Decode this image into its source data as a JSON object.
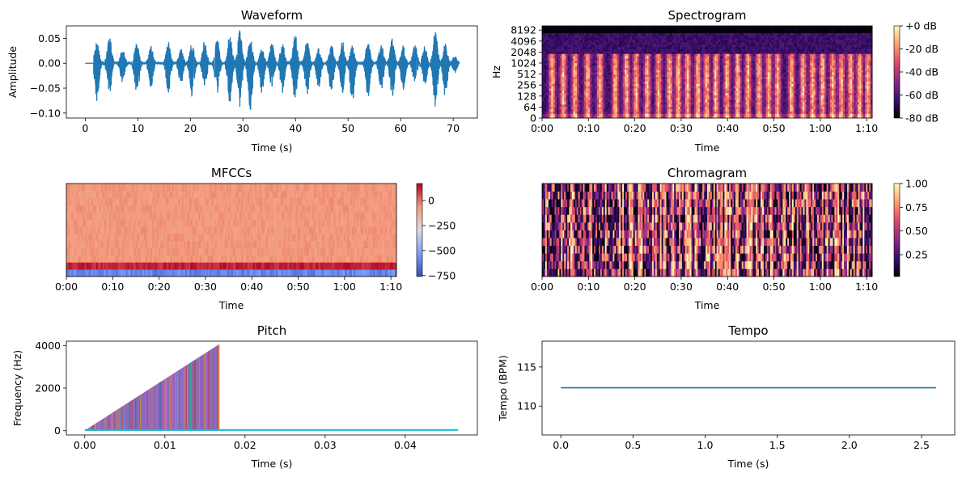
{
  "chart_data": [
    {
      "id": "waveform",
      "type": "line",
      "title": "Waveform",
      "xlabel": "Time (s)",
      "ylabel": "Amplitude",
      "xlim": [
        -3.6,
        74.6
      ],
      "ylim": [
        -0.11,
        0.075
      ],
      "x_ticks": [
        0,
        10,
        20,
        30,
        40,
        50,
        60,
        70
      ],
      "x_tick_labels": [
        "0",
        "10",
        "20",
        "30",
        "40",
        "50",
        "60",
        "70"
      ],
      "y_ticks": [
        0.05,
        0.0,
        -0.05,
        -0.1
      ],
      "y_tick_labels": [
        "0.05",
        "0.00",
        "−0.05",
        "−0.10"
      ],
      "duration_s": 71.2,
      "color": "#1f77b4",
      "series": [
        {
          "bursts": [
            {
              "t": 2.2,
              "peak": 0.045,
              "trough": -0.08
            },
            {
              "t": 4.6,
              "peak": 0.055,
              "trough": -0.065
            },
            {
              "t": 7.1,
              "peak": 0.03,
              "trough": -0.04
            },
            {
              "t": 9.8,
              "peak": 0.04,
              "trough": -0.075
            },
            {
              "t": 12.5,
              "peak": 0.035,
              "trough": -0.05
            },
            {
              "t": 15.8,
              "peak": 0.045,
              "trough": -0.06
            },
            {
              "t": 18.2,
              "peak": 0.03,
              "trough": -0.045
            },
            {
              "t": 20.3,
              "peak": 0.04,
              "trough": -0.07
            },
            {
              "t": 22.7,
              "peak": 0.045,
              "trough": -0.05
            },
            {
              "t": 25.1,
              "peak": 0.05,
              "trough": -0.06
            },
            {
              "t": 27.5,
              "peak": 0.06,
              "trough": -0.085
            },
            {
              "t": 29.4,
              "peak": 0.065,
              "trough": -0.09
            },
            {
              "t": 31.4,
              "peak": 0.05,
              "trough": -0.1
            },
            {
              "t": 33.6,
              "peak": 0.03,
              "trough": -0.06
            },
            {
              "t": 35.5,
              "peak": 0.045,
              "trough": -0.05
            },
            {
              "t": 37.5,
              "peak": 0.04,
              "trough": -0.06
            },
            {
              "t": 39.9,
              "peak": 0.06,
              "trough": -0.075
            },
            {
              "t": 42.2,
              "peak": 0.045,
              "trough": -0.065
            },
            {
              "t": 44.4,
              "peak": 0.03,
              "trough": -0.05
            },
            {
              "t": 46.8,
              "peak": 0.04,
              "trough": -0.06
            },
            {
              "t": 48.9,
              "peak": 0.045,
              "trough": -0.06
            },
            {
              "t": 50.8,
              "peak": 0.035,
              "trough": -0.08
            },
            {
              "t": 53.8,
              "peak": 0.045,
              "trough": -0.07
            },
            {
              "t": 56.3,
              "peak": 0.04,
              "trough": -0.055
            },
            {
              "t": 58.4,
              "peak": 0.05,
              "trough": -0.075
            },
            {
              "t": 60.5,
              "peak": 0.035,
              "trough": -0.055
            },
            {
              "t": 62.7,
              "peak": 0.04,
              "trough": -0.04
            },
            {
              "t": 64.6,
              "peak": 0.035,
              "trough": -0.045
            },
            {
              "t": 66.6,
              "peak": 0.065,
              "trough": -0.095
            },
            {
              "t": 68.5,
              "peak": 0.04,
              "trough": -0.07
            },
            {
              "t": 70.3,
              "peak": 0.015,
              "trough": -0.02
            }
          ]
        }
      ]
    },
    {
      "id": "spectrogram",
      "type": "heatmap",
      "title": "Spectrogram",
      "xlabel": "Time",
      "ylabel": "Hz",
      "y_scale": "symlog",
      "x_tick_labels": [
        "0:00",
        "0:10",
        "0:20",
        "0:30",
        "0:40",
        "0:50",
        "1:00",
        "1:10"
      ],
      "y_tick_labels": [
        "0",
        "64",
        "128",
        "256",
        "512",
        "1024",
        "2048",
        "4096",
        "8192"
      ],
      "colormap": "magma",
      "colorbar": {
        "range": [
          -80,
          0
        ],
        "tick_labels": [
          "+0 dB",
          "-20 dB",
          "-40 dB",
          "-60 dB",
          "-80 dB"
        ]
      }
    },
    {
      "id": "mfccs",
      "type": "heatmap",
      "title": "MFCCs",
      "xlabel": "Time",
      "x_tick_labels": [
        "0:00",
        "0:10",
        "0:20",
        "0:30",
        "0:40",
        "0:50",
        "1:00",
        "1:10"
      ],
      "colormap": "coolwarm",
      "rows": 13,
      "colorbar": {
        "range": [
          -760,
          170
        ],
        "ticks": [
          0,
          -250,
          -500,
          -750
        ],
        "tick_labels": [
          "0",
          "−250",
          "−500",
          "−750"
        ]
      }
    },
    {
      "id": "chromagram",
      "type": "heatmap",
      "title": "Chromagram",
      "xlabel": "Time",
      "x_tick_labels": [
        "0:00",
        "0:10",
        "0:20",
        "0:30",
        "0:40",
        "0:50",
        "1:00",
        "1:10"
      ],
      "colormap": "magma",
      "rows": 12,
      "colorbar": {
        "range": [
          0.02,
          1.0
        ],
        "ticks": [
          1.0,
          0.75,
          0.5,
          0.25
        ],
        "tick_labels": [
          "1.00",
          "0.75",
          "0.50",
          "0.25"
        ]
      }
    },
    {
      "id": "pitch",
      "type": "line",
      "title": "Pitch",
      "xlabel": "Time (s)",
      "ylabel": "Frequency (Hz)",
      "xlim": [
        -0.0023,
        0.049
      ],
      "ylim": [
        -200,
        4200
      ],
      "x_ticks": [
        0.0,
        0.01,
        0.02,
        0.03,
        0.04
      ],
      "x_tick_labels": [
        "0.00",
        "0.01",
        "0.02",
        "0.03",
        "0.04"
      ],
      "y_ticks": [
        0,
        2000,
        4000
      ],
      "y_tick_labels": [
        "0",
        "2000",
        "4000"
      ],
      "ramp_end": {
        "x": 0.0168,
        "y": 4050
      },
      "baseline": {
        "x0": 0.0,
        "x1": 0.0466,
        "y": 30
      },
      "colors": [
        "#9467bd",
        "#8c564b",
        "#e377c2",
        "#d62728",
        "#17becf",
        "#ff7f0e",
        "#bcbd22",
        "#2ca02c",
        "#7f7f7f",
        "#1f77b4"
      ]
    },
    {
      "id": "tempo",
      "type": "line",
      "title": "Tempo",
      "xlabel": "Time (s)",
      "ylabel": "Tempo (BPM)",
      "xlim": [
        -0.13,
        2.73
      ],
      "ylim": [
        106.3,
        118.3
      ],
      "x_ticks": [
        0.0,
        0.5,
        1.0,
        1.5,
        2.0,
        2.5
      ],
      "x_tick_labels": [
        "0.0",
        "0.5",
        "1.0",
        "1.5",
        "2.0",
        "2.5"
      ],
      "y_ticks": [
        115,
        110
      ],
      "y_tick_labels": [
        "115",
        "110"
      ],
      "color": "#1f77b4",
      "series": [
        {
          "x": [
            0.0,
            2.6
          ],
          "y": [
            112.35,
            112.35
          ]
        }
      ]
    }
  ]
}
